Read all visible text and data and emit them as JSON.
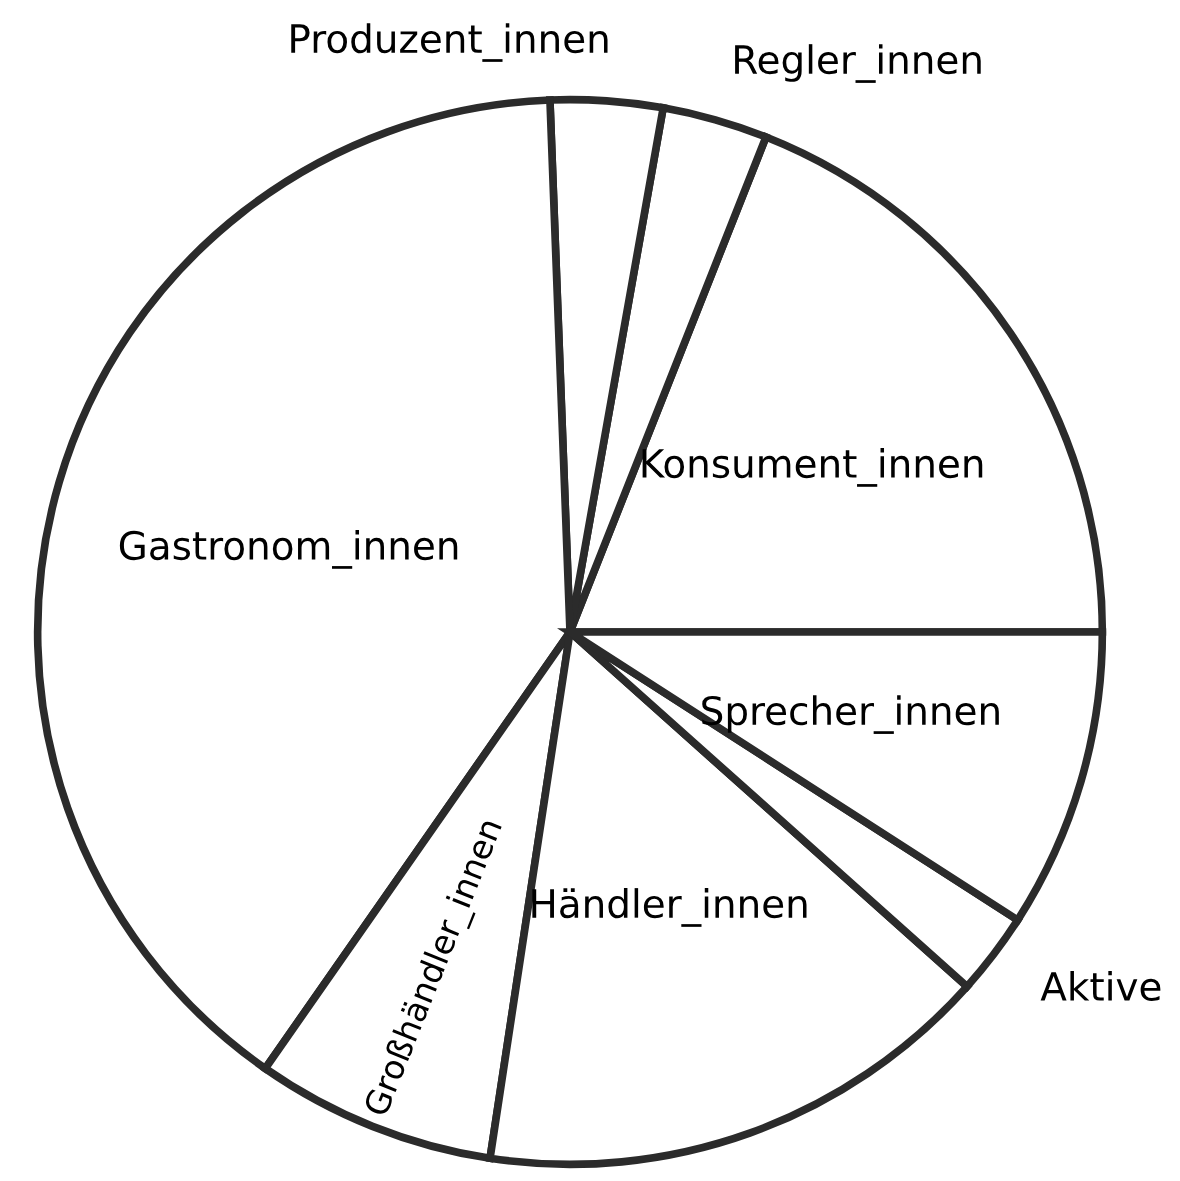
{
  "chart_data": {
    "type": "pie",
    "categories": [
      "Konsument_innen",
      "Regler_innen",
      "Produzent_innen",
      "Gastronom_innen",
      "Großhändler_innen",
      "Händler_innen",
      "Aktive",
      "Sprecher_innen"
    ],
    "values": [
      19.0,
      3.2,
      3.4,
      39.7,
      7.3,
      15.8,
      2.5,
      9.1
    ],
    "colors": [
      "#ffffff",
      "#ffffff",
      "#ffffff",
      "#ffffff",
      "#ffffff",
      "#ffffff",
      "#ffffff",
      "#ffffff"
    ]
  }
}
